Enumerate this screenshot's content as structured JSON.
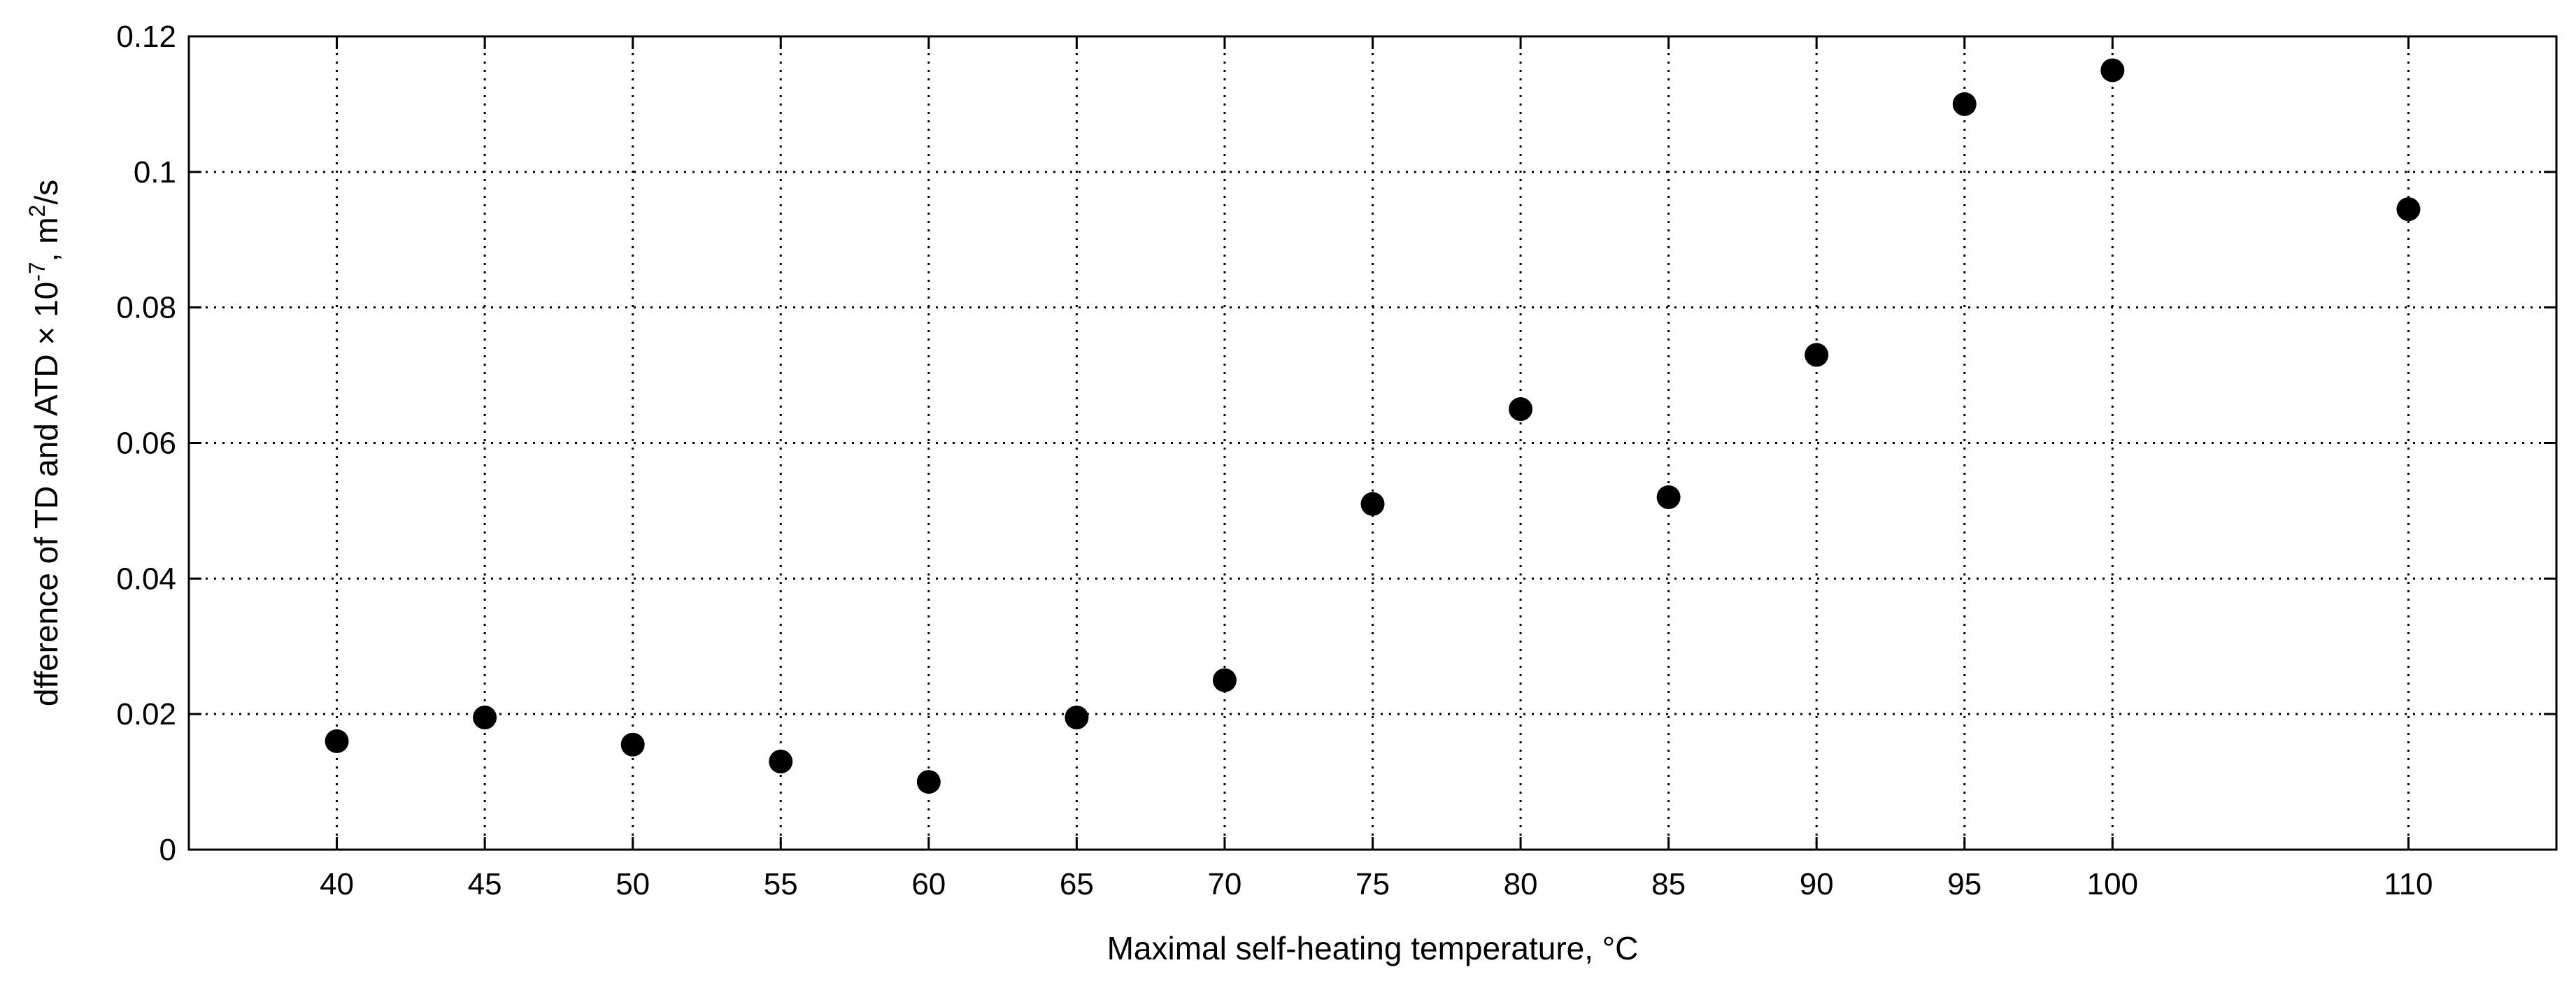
{
  "chart_data": {
    "type": "scatter",
    "xlabel": "Maximal self-heating temperature, °C",
    "ylabel": {
      "main": "dfference of TD and ATD × 10",
      "exp": "-7",
      "unit_main": ", m",
      "unit_exp": "2",
      "unit_tail": "/s"
    },
    "xlim": [
      35,
      115
    ],
    "ylim": [
      0,
      0.12
    ],
    "x_ticks": [
      40,
      45,
      50,
      55,
      60,
      65,
      70,
      75,
      80,
      85,
      90,
      95,
      100,
      110
    ],
    "y_ticks": [
      0,
      0.02,
      0.04,
      0.06,
      0.08,
      0.1,
      0.12
    ],
    "y_tick_labels": [
      "0",
      "0.02",
      "0.04",
      "0.06",
      "0.08",
      "0.1",
      "0.12"
    ],
    "grid": true,
    "marker_color": "#000000",
    "points": [
      {
        "x": 40,
        "y": 0.016
      },
      {
        "x": 45,
        "y": 0.0195
      },
      {
        "x": 50,
        "y": 0.0155
      },
      {
        "x": 55,
        "y": 0.013
      },
      {
        "x": 60,
        "y": 0.01
      },
      {
        "x": 65,
        "y": 0.0195
      },
      {
        "x": 70,
        "y": 0.025
      },
      {
        "x": 75,
        "y": 0.051
      },
      {
        "x": 80,
        "y": 0.065
      },
      {
        "x": 85,
        "y": 0.052
      },
      {
        "x": 90,
        "y": 0.073
      },
      {
        "x": 95,
        "y": 0.11
      },
      {
        "x": 100,
        "y": 0.115
      },
      {
        "x": 110,
        "y": 0.0945
      }
    ]
  }
}
